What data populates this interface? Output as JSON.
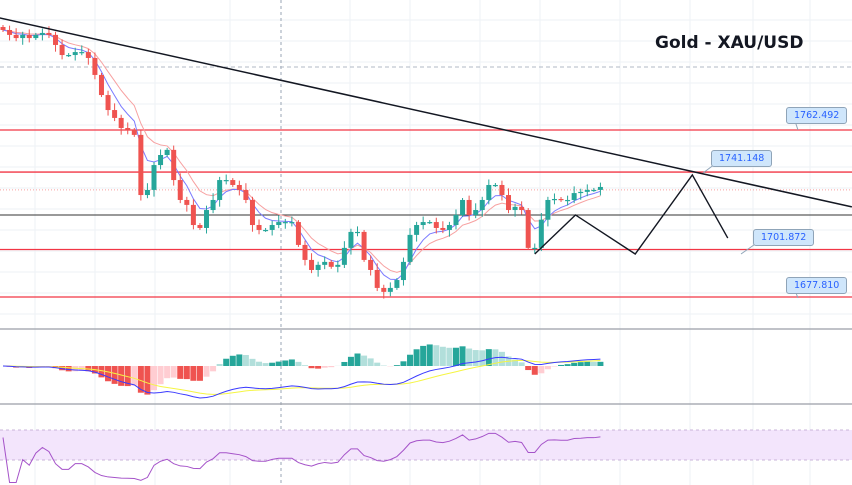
{
  "chart_data": {
    "type": "candlestick",
    "title": "Gold - XAU/USD",
    "ylim": [
      1663.6,
      1828.4
    ],
    "closes": [
      1813.2,
      1810.7,
      1809.1,
      1810.7,
      1809.1,
      1810.7,
      1811.7,
      1810.7,
      1805.6,
      1800.5,
      1800.5,
      1802.0,
      1802.0,
      1799.0,
      1790.4,
      1780.2,
      1772.6,
      1768.6,
      1763.5,
      1762.5,
      1760.0,
      1729.5,
      1732.1,
      1744.7,
      1749.8,
      1752.4,
      1737.1,
      1727.0,
      1724.5,
      1714.3,
      1712.8,
      1721.9,
      1727.0,
      1737.1,
      1737.1,
      1734.6,
      1732.1,
      1727.0,
      1714.3,
      1711.8,
      1711.8,
      1714.3,
      1715.8,
      1715.8,
      1715.8,
      1704.2,
      1696.6,
      1691.5,
      1694.1,
      1695.6,
      1693.1,
      1694.1,
      1702.7,
      1710.8,
      1710.8,
      1696.6,
      1691.5,
      1682.4,
      1680.4,
      1682.4,
      1686.4,
      1695.6,
      1709.3,
      1714.3,
      1715.8,
      1715.8,
      1712.8,
      1711.8,
      1714.3,
      1719.4,
      1727.0,
      1719.4,
      1721.9,
      1727.0,
      1734.6,
      1734.6,
      1729.5,
      1721.9,
      1723.5,
      1721.9,
      1702.7,
      1702.7,
      1717.0,
      1727.0,
      1727.5,
      1727.0,
      1727.0,
      1730.5,
      1731.1,
      1732.1,
      1732.1,
      1733.6
    ],
    "levels": [
      {
        "price": 1762.492,
        "label": "1762.492"
      },
      {
        "price": 1741.148,
        "label": "1741.148"
      },
      {
        "price": 1701.872,
        "label": "1701.872"
      },
      {
        "price": 1677.81,
        "label": "1677.810"
      }
    ],
    "pivot_line": 1719.4,
    "current_price_line": 1732.1,
    "dashed_line": 1794.4,
    "trendline": [
      [
        -0.5,
        1819.3
      ],
      [
        129.3,
        1723.5
      ]
    ],
    "projection": [
      [
        81,
        1699.6
      ],
      [
        87.2,
        1719.4
      ],
      [
        96.3,
        1699.6
      ],
      [
        105,
        1739.7
      ],
      [
        110.4,
        1707.7
      ]
    ],
    "indicators": [
      "EMA fast",
      "EMA slow",
      "MACD",
      "RSI"
    ],
    "colors": {
      "up": "#26a69a",
      "down": "#ef5350",
      "level": "#f23645",
      "ema_fast": "#7b7bff",
      "ema_slow": "#f7a0a0",
      "macd": "#3a3aff",
      "signal": "#f5f542",
      "rsi": "#a553c9"
    }
  }
}
